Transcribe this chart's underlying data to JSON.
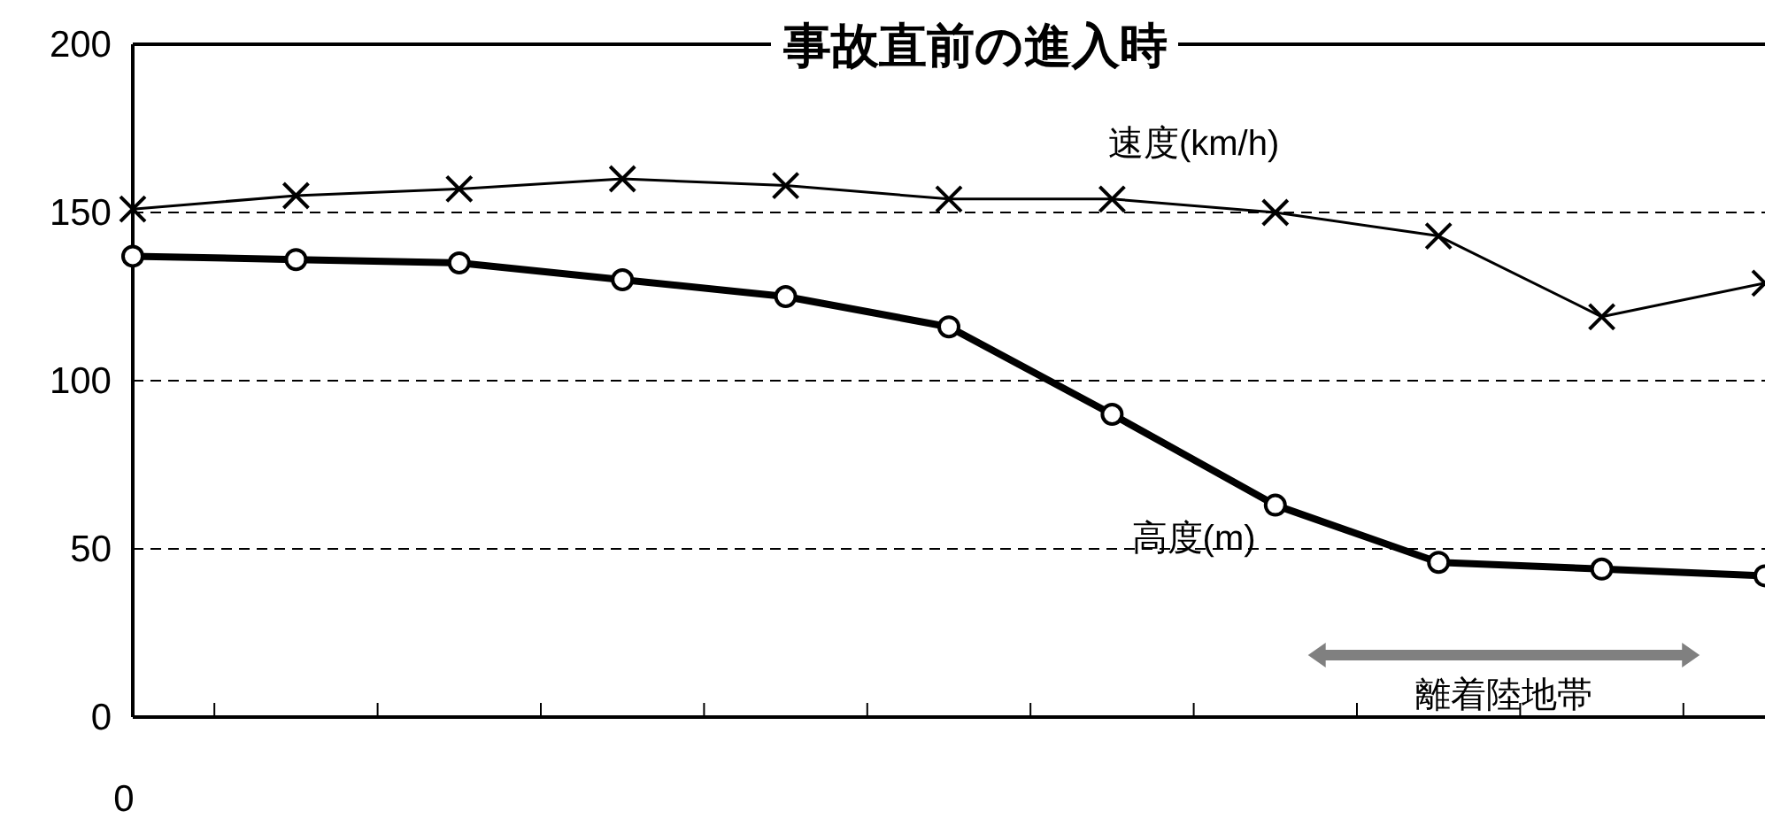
{
  "chart_data": {
    "type": "line",
    "title": "事故直前の進入時",
    "categories": [
      null,
      null,
      null,
      null,
      null,
      null,
      null,
      null,
      null,
      null,
      null
    ],
    "series": [
      {
        "name": "速度(km/h)",
        "color": "#000000",
        "marker": "cross",
        "values": [
          151,
          155,
          157,
          160,
          158,
          154,
          154,
          150,
          143,
          119,
          129
        ]
      },
      {
        "name": "高度(m)",
        "color": "#000000",
        "marker": "circle",
        "values": [
          137,
          136,
          135,
          130,
          125,
          116,
          90,
          63,
          46,
          44,
          42
        ]
      }
    ],
    "ylim": [
      0,
      200
    ],
    "yticks": [
      0,
      50,
      100,
      150,
      200
    ],
    "grid": "y",
    "line_style": "solid",
    "annotations": [
      "0",
      "離着陸地帯"
    ]
  }
}
